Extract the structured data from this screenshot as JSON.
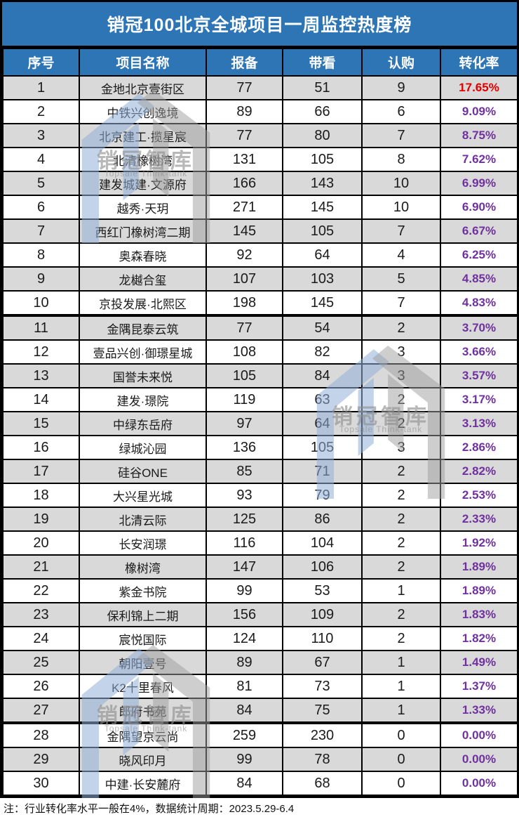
{
  "title": "销冠100北京全城项目一周监控热度榜",
  "table": {
    "columns": [
      {
        "key": "rank",
        "label": "序号"
      },
      {
        "key": "name",
        "label": "项目名称"
      },
      {
        "key": "baobei",
        "label": "报备"
      },
      {
        "key": "daikan",
        "label": "带看"
      },
      {
        "key": "rengou",
        "label": "认购"
      },
      {
        "key": "rate",
        "label": "转化率"
      }
    ],
    "rows": [
      [
        "1",
        "金地北京壹街区",
        "77",
        "51",
        "9",
        "17.65%"
      ],
      [
        "2",
        "中铁兴创逸境",
        "89",
        "66",
        "6",
        "9.09%"
      ],
      [
        "3",
        "北京建工·揽星宸",
        "77",
        "80",
        "7",
        "8.75%"
      ],
      [
        "4",
        "北清橡树湾",
        "131",
        "105",
        "8",
        "7.62%"
      ],
      [
        "5",
        "建发城建·文源府",
        "166",
        "143",
        "10",
        "6.99%"
      ],
      [
        "6",
        "越秀·天玥",
        "271",
        "145",
        "10",
        "6.90%"
      ],
      [
        "7",
        "西红门橡树湾二期",
        "145",
        "105",
        "7",
        "6.67%"
      ],
      [
        "8",
        "奥森春晓",
        "92",
        "64",
        "4",
        "6.25%"
      ],
      [
        "9",
        "龙樾合玺",
        "107",
        "103",
        "5",
        "4.85%"
      ],
      [
        "10",
        "京投发展·北熙区",
        "198",
        "145",
        "7",
        "4.83%"
      ],
      [
        "11",
        "金隅昆泰云筑",
        "77",
        "54",
        "2",
        "3.70%"
      ],
      [
        "12",
        "壹品兴创·御璟星城",
        "108",
        "82",
        "3",
        "3.66%"
      ],
      [
        "13",
        "国誉未来悦",
        "105",
        "84",
        "3",
        "3.57%"
      ],
      [
        "14",
        "建发·璟院",
        "119",
        "63",
        "2",
        "3.17%"
      ],
      [
        "15",
        "中绿东岳府",
        "97",
        "64",
        "2",
        "3.13%"
      ],
      [
        "16",
        "绿城沁园",
        "136",
        "105",
        "3",
        "2.86%"
      ],
      [
        "17",
        "硅谷ONE",
        "85",
        "71",
        "2",
        "2.82%"
      ],
      [
        "18",
        "大兴星光城",
        "93",
        "79",
        "2",
        "2.53%"
      ],
      [
        "19",
        "北清云际",
        "125",
        "86",
        "2",
        "2.33%"
      ],
      [
        "20",
        "长安润璟",
        "116",
        "104",
        "2",
        "1.92%"
      ],
      [
        "21",
        "橡树湾",
        "147",
        "106",
        "2",
        "1.89%"
      ],
      [
        "22",
        "紫金书院",
        "99",
        "53",
        "1",
        "1.89%"
      ],
      [
        "23",
        "保利锦上二期",
        "156",
        "109",
        "2",
        "1.83%"
      ],
      [
        "24",
        "宸悦国际",
        "124",
        "110",
        "2",
        "1.82%"
      ],
      [
        "25",
        "朝阳壹号",
        "89",
        "67",
        "1",
        "1.49%"
      ],
      [
        "26",
        "K2十里春风",
        "81",
        "73",
        "1",
        "1.37%"
      ],
      [
        "27",
        "郎府书苑",
        "84",
        "75",
        "1",
        "1.33%"
      ],
      [
        "28",
        "金隅望京云尚",
        "259",
        "230",
        "0",
        "0.00%"
      ],
      [
        "29",
        "晓风印月",
        "99",
        "78",
        "0",
        "0.00%"
      ],
      [
        "30",
        "中建·长安麓府",
        "84",
        "68",
        "0",
        "0.00%"
      ]
    ],
    "group_breaks_after_rank": [
      10,
      27
    ]
  },
  "footer_note": "注：行业转化率水平一般在4%，数据统计周期：2023.5.29-6.4",
  "watermark": {
    "cn": "销冠智库",
    "en": "Topsale Think-tank"
  },
  "colors": {
    "header_blue": "#2e75b6",
    "row_gray": "#d9d9d9",
    "row_white": "#ffffff",
    "border_black": "#000000",
    "top_rate_red": "#e00000",
    "rate_purple": "#7030a0",
    "watermark_blue": "#8fafd9",
    "watermark_gray": "#9e9e9e"
  }
}
